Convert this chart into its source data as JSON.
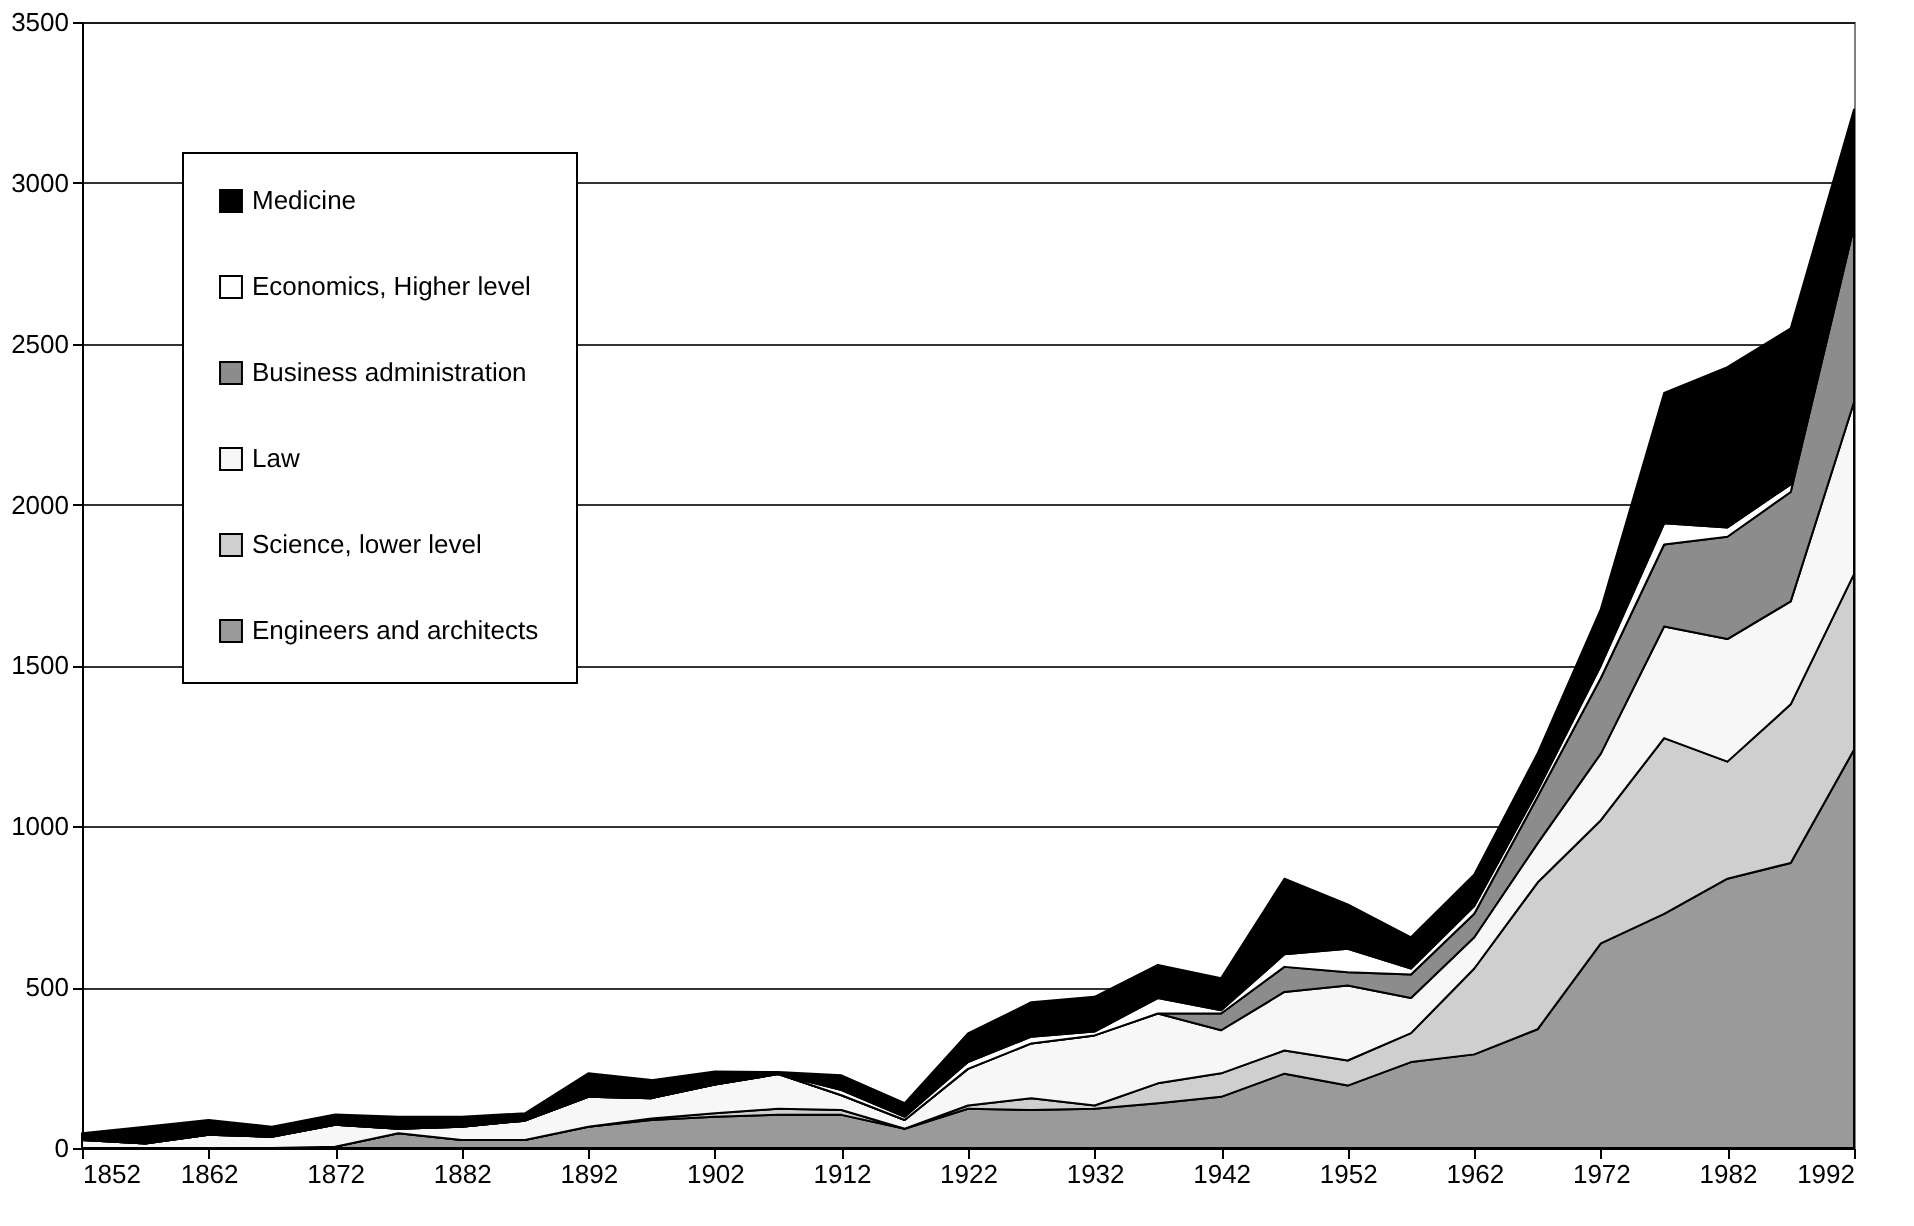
{
  "chart_data": {
    "type": "area",
    "stacked": true,
    "x": [
      1852,
      1857,
      1862,
      1867,
      1872,
      1877,
      1882,
      1887,
      1892,
      1897,
      1902,
      1907,
      1912,
      1917,
      1922,
      1927,
      1932,
      1937,
      1942,
      1947,
      1952,
      1957,
      1962,
      1967,
      1972,
      1977,
      1982,
      1987,
      1992
    ],
    "series": [
      {
        "name": "Engineers and architects",
        "color": "#9a9a9a",
        "values": [
          0,
          0,
          0,
          0,
          4,
          46,
          25,
          25,
          66,
          87,
          97,
          103,
          103,
          60,
          122,
          118,
          122,
          139,
          159,
          231,
          194,
          267,
          291,
          369,
          636,
          728,
          837,
          886,
          1238
        ]
      },
      {
        "name": "Science, lower level",
        "color": "#cfcfcf",
        "values": [
          0,
          0,
          0,
          0,
          0,
          0,
          0,
          0,
          0,
          5,
          11,
          19,
          15,
          0,
          10,
          37,
          10,
          62,
          73,
          72,
          78,
          90,
          267,
          456,
          383,
          546,
          364,
          493,
          546
        ]
      },
      {
        "name": "Law",
        "color": "#f7f7f7",
        "values": [
          25,
          14,
          41,
          35,
          68,
          14,
          41,
          60,
          93,
          63,
          89,
          108,
          46,
          27,
          114,
          170,
          218,
          217,
          134,
          182,
          233,
          109,
          97,
          122,
          207,
          347,
          381,
          320,
          534
        ]
      },
      {
        "name": "Business administration",
        "color": "#8c8c8c",
        "values": [
          0,
          0,
          0,
          0,
          0,
          0,
          0,
          0,
          0,
          0,
          0,
          0,
          0,
          0,
          0,
          0,
          0,
          0,
          52,
          78,
          41,
          73,
          73,
          145,
          235,
          255,
          318,
          340,
          546
        ]
      },
      {
        "name": "Economics, Higher level",
        "color": "#ffffff",
        "values": [
          0,
          0,
          0,
          0,
          0,
          0,
          0,
          0,
          0,
          0,
          0,
          0,
          16,
          10,
          21,
          21,
          12,
          48,
          10,
          39,
          73,
          19,
          24,
          20,
          39,
          66,
          29,
          24,
          12
        ]
      },
      {
        "name": "Medicine",
        "color": "#000000",
        "values": [
          21,
          52,
          46,
          31,
          32,
          37,
          31,
          23,
          73,
          56,
          41,
          6,
          46,
          42,
          89,
          107,
          108,
          103,
          100,
          235,
          138,
          97,
          98,
          114,
          175,
          405,
          498,
          485,
          352
        ]
      }
    ],
    "xlim": [
      1852,
      1992
    ],
    "xticks": [
      1852,
      1862,
      1872,
      1882,
      1892,
      1902,
      1912,
      1922,
      1932,
      1942,
      1952,
      1962,
      1972,
      1982,
      1992
    ],
    "ylim": [
      0,
      3500
    ],
    "yticks": [
      0,
      500,
      1000,
      1500,
      2000,
      2500,
      3000,
      3500
    ],
    "grid": "y",
    "legend": "top left"
  }
}
